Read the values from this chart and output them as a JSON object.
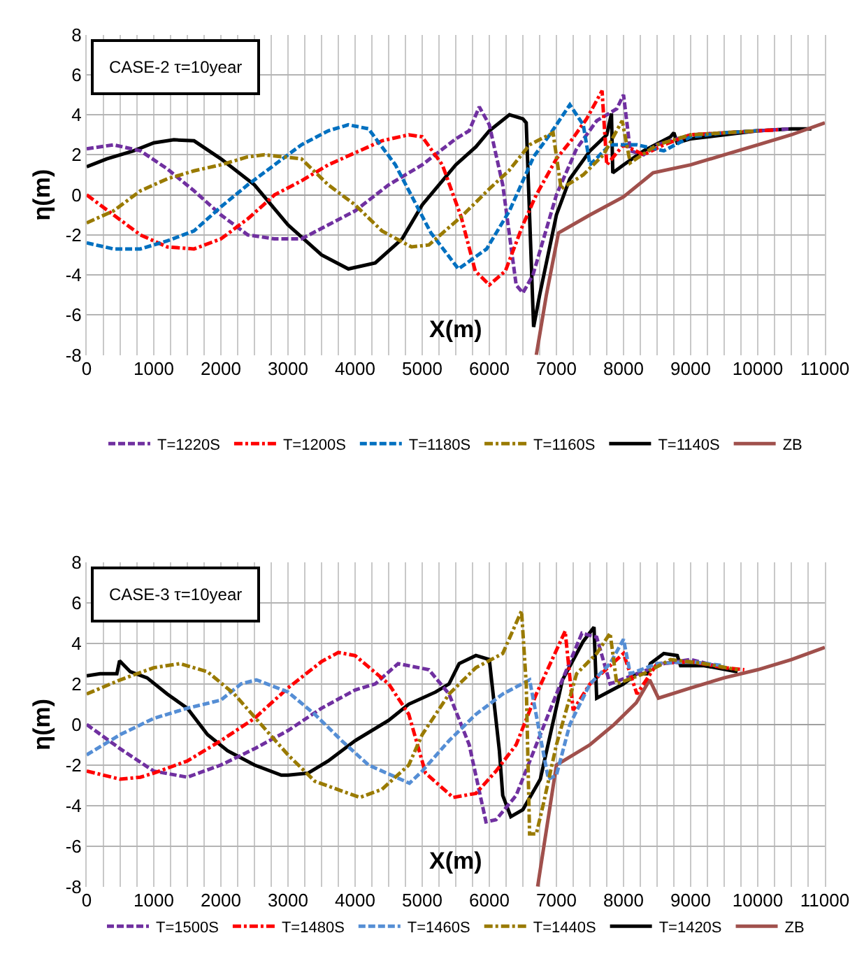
{
  "chart_data": [
    {
      "type": "line",
      "title": "CASE-2 τ=10year",
      "xlabel": "X(m)",
      "ylabel": "η(m)",
      "xlim": [
        0,
        11000
      ],
      "xticks": [
        0,
        1000,
        2000,
        3000,
        4000,
        5000,
        6000,
        7000,
        8000,
        9000,
        10000,
        11000
      ],
      "ylim": [
        -8,
        8
      ],
      "yticks": [
        -8,
        -6,
        -4,
        -2,
        0,
        2,
        4,
        6,
        8
      ],
      "grid": true,
      "legend": "bottom",
      "series": [
        {
          "name": "T=1220S",
          "color": "#7030a0",
          "line_style": "dashed",
          "x": [
            0,
            400,
            800,
            1200,
            1600,
            2000,
            2400,
            2800,
            3200,
            3600,
            4000,
            4500,
            5000,
            5500,
            5700,
            5850,
            6000,
            6200,
            6300,
            6400,
            6500,
            6650,
            7000,
            7300,
            7600,
            7900,
            8000,
            8100,
            8300,
            8500,
            9000,
            9500,
            10000,
            10500
          ],
          "values": [
            2.3,
            2.5,
            2.2,
            1.3,
            0.2,
            -1,
            -2,
            -2.2,
            -2.2,
            -1.5,
            -0.8,
            0.5,
            1.5,
            2.8,
            3.2,
            4.4,
            3.5,
            0.5,
            -2,
            -4.5,
            -4.9,
            -4,
            0,
            2.3,
            3.7,
            4.3,
            5.0,
            2.2,
            2,
            2.5,
            3,
            3.1,
            3.2,
            3.3
          ]
        },
        {
          "name": "T=1200S",
          "color": "#ff0000",
          "line_style": "dashdot",
          "x": [
            0,
            400,
            800,
            1200,
            1600,
            2000,
            2400,
            2800,
            3200,
            3600,
            4000,
            4400,
            4800,
            5000,
            5300,
            5580,
            5790,
            6000,
            6240,
            6500,
            6700,
            7000,
            7240,
            7450,
            7680,
            7750,
            8000,
            8300,
            8600,
            9000,
            9500,
            10300
          ],
          "values": [
            0,
            -1,
            -2,
            -2.6,
            -2.7,
            -2.2,
            -1.2,
            0,
            0.7,
            1.5,
            2.1,
            2.7,
            3.0,
            2.9,
            1.5,
            -1.1,
            -3.8,
            -4.5,
            -3.8,
            -1.5,
            0,
            1.8,
            2.8,
            3.8,
            5.2,
            1.5,
            2.5,
            2.0,
            2.5,
            3,
            3.1,
            3.25
          ]
        },
        {
          "name": "T=1180S",
          "color": "#0070c0",
          "line_style": "dashed",
          "x": [
            0,
            400,
            800,
            1200,
            1600,
            2000,
            2400,
            2800,
            3200,
            3600,
            3900,
            4200,
            4600,
            5130,
            5540,
            5960,
            6300,
            6660,
            6900,
            7200,
            7400,
            7500,
            7800,
            8200,
            8600,
            9000,
            9500,
            10000
          ],
          "values": [
            -2.4,
            -2.7,
            -2.7,
            -2.3,
            -1.8,
            -0.6,
            0.5,
            1.5,
            2.5,
            3.2,
            3.5,
            3.3,
            1.5,
            -1.9,
            -3.7,
            -2.7,
            -0.8,
            1.9,
            3,
            4.5,
            3.5,
            1.5,
            2.5,
            2.5,
            2.2,
            2.9,
            3.1,
            3.2
          ]
        },
        {
          "name": "T=1160S",
          "color": "#997a00",
          "line_style": "dashdot",
          "x": [
            0,
            400,
            800,
            1200,
            1600,
            2000,
            2400,
            2650,
            3200,
            3600,
            4000,
            4400,
            4840,
            5100,
            5580,
            6000,
            6290,
            6600,
            6950,
            7070,
            7400,
            7700,
            7980,
            8100,
            8500,
            9000,
            10000
          ],
          "values": [
            -1.4,
            -0.8,
            0.2,
            0.8,
            1.2,
            1.5,
            1.9,
            2.0,
            1.8,
            0.5,
            -0.5,
            -1.8,
            -2.6,
            -2.5,
            -1.1,
            0.3,
            1.2,
            2.5,
            3.1,
            0.3,
            1,
            2,
            3.7,
            1.6,
            2.5,
            3,
            3.2
          ]
        },
        {
          "name": "T=1140S",
          "color": "#000000",
          "line_style": "solid",
          "x": [
            0,
            300,
            700,
            1000,
            1300,
            1600,
            2000,
            2500,
            3000,
            3500,
            3900,
            4300,
            4700,
            5000,
            5500,
            5800,
            6000,
            6300,
            6500,
            6550,
            6660,
            6750,
            7000,
            7200,
            7500,
            7750,
            7820,
            7840,
            8000,
            8300,
            8700,
            8750,
            8800,
            9000,
            9500,
            10000,
            10500,
            10800
          ],
          "values": [
            1.4,
            1.8,
            2.2,
            2.6,
            2.75,
            2.7,
            1.8,
            0.5,
            -1.5,
            -3,
            -3.7,
            -3.4,
            -2.2,
            -0.5,
            1.5,
            2.4,
            3.2,
            4.0,
            3.8,
            3.6,
            -6.6,
            -5,
            -1,
            0.8,
            2.2,
            3.0,
            4.06,
            1.1,
            1.5,
            2.2,
            2.9,
            3.1,
            2.6,
            2.8,
            3.0,
            3.2,
            3.3,
            3.3
          ]
        },
        {
          "name": "ZB",
          "color": "#a0504c",
          "line_style": "solid",
          "x": [
            6700,
            6850,
            7030,
            7500,
            8000,
            8440,
            9000,
            9500,
            10000,
            10500,
            11000
          ],
          "values": [
            -8,
            -5,
            -1.9,
            -1,
            -0.1,
            1.1,
            1.5,
            2,
            2.5,
            3,
            3.6
          ]
        }
      ]
    },
    {
      "type": "line",
      "title": "CASE-3 τ=10year",
      "xlabel": "X(m)",
      "ylabel": "η(m)",
      "xlim": [
        0,
        11000
      ],
      "xticks": [
        0,
        1000,
        2000,
        3000,
        4000,
        5000,
        6000,
        7000,
        8000,
        9000,
        10000,
        11000
      ],
      "ylim": [
        -8,
        8
      ],
      "yticks": [
        -8,
        -6,
        -4,
        -2,
        0,
        2,
        4,
        6,
        8
      ],
      "grid": true,
      "legend": "bottom",
      "series": [
        {
          "name": "T=1500S",
          "color": "#7030a0",
          "line_style": "dashed",
          "x": [
            0,
            500,
            1000,
            1500,
            2000,
            2500,
            3000,
            3500,
            4000,
            4300,
            4640,
            5100,
            5400,
            5700,
            5950,
            6100,
            6400,
            6700,
            7000,
            7380,
            7600,
            7800,
            8200,
            8600,
            9000,
            9500
          ],
          "values": [
            0,
            -1.2,
            -2.3,
            -2.6,
            -2,
            -1.2,
            -0.3,
            0.8,
            1.7,
            2.0,
            3.0,
            2.7,
            1.5,
            -1,
            -4.8,
            -4.7,
            -3.5,
            -1,
            1.5,
            4.5,
            4.3,
            2,
            2.5,
            3,
            3.2,
            2.8
          ]
        },
        {
          "name": "T=1480S",
          "color": "#ff0000",
          "line_style": "dashdot",
          "x": [
            0,
            500,
            800,
            1000,
            1500,
            2000,
            2500,
            3000,
            3500,
            3750,
            4000,
            4500,
            4800,
            5050,
            5460,
            5800,
            6100,
            6400,
            6700,
            7130,
            7250,
            7500,
            8000,
            8200,
            8500,
            9000,
            9500,
            9800
          ],
          "values": [
            -2.3,
            -2.7,
            -2.6,
            -2.4,
            -1.8,
            -0.8,
            0.3,
            1.8,
            3.1,
            3.55,
            3.4,
            2,
            0.5,
            -2.4,
            -3.6,
            -3.4,
            -2.3,
            -1,
            1.5,
            4.6,
            0.7,
            2,
            3.5,
            1.5,
            3,
            3.1,
            2.8,
            2.7
          ]
        },
        {
          "name": "T=1460S",
          "color": "#558ed5",
          "line_style": "dashed",
          "x": [
            0,
            500,
            1000,
            1500,
            2000,
            2300,
            2530,
            3000,
            3400,
            3800,
            4200,
            4810,
            5000,
            5400,
            5800,
            6200,
            6600,
            6880,
            7000,
            7200,
            7500,
            7800,
            8000,
            8100,
            8500,
            9000,
            9500
          ],
          "values": [
            -1.5,
            -0.5,
            0.3,
            0.8,
            1.2,
            2.0,
            2.2,
            1.6,
            0.5,
            -0.8,
            -2,
            -2.9,
            -2.3,
            -0.8,
            0.5,
            1.5,
            2.2,
            -2.7,
            -2.5,
            0,
            2,
            3,
            4.2,
            2.5,
            3,
            3.1,
            2.9
          ]
        },
        {
          "name": "T=1440S",
          "color": "#997a00",
          "line_style": "dashdot",
          "x": [
            0,
            500,
            1000,
            1390,
            1800,
            2200,
            2600,
            3000,
            3400,
            4070,
            4400,
            4800,
            5000,
            5400,
            5800,
            6200,
            6480,
            6550,
            6600,
            6700,
            6800,
            7000,
            7300,
            7600,
            7800,
            7900,
            8300,
            8700,
            9200,
            9700
          ],
          "values": [
            1.5,
            2.2,
            2.8,
            3.0,
            2.6,
            1.5,
            0,
            -1.5,
            -2.8,
            -3.6,
            -3.2,
            -2,
            -0.5,
            1.5,
            2.8,
            3.5,
            5.6,
            2,
            -5.4,
            -5.4,
            -4,
            -1,
            2.5,
            3.5,
            4.5,
            2,
            2.5,
            3.2,
            3.0,
            2.7
          ]
        },
        {
          "name": "T=1420S",
          "color": "#000000",
          "line_style": "solid",
          "x": [
            0,
            200,
            450,
            490,
            650,
            900,
            1200,
            1500,
            1800,
            2100,
            2500,
            2900,
            3000,
            3300,
            3600,
            4000,
            4500,
            4800,
            5200,
            5400,
            5550,
            5800,
            6000,
            6150,
            6200,
            6320,
            6500,
            6760,
            7090,
            7400,
            7560,
            7600,
            8000,
            8200,
            8350,
            8400,
            8600,
            8800,
            8850,
            9200,
            9700
          ],
          "values": [
            2.4,
            2.5,
            2.5,
            3.14,
            2.6,
            2.3,
            1.5,
            0.8,
            -0.5,
            -1.3,
            -2,
            -2.5,
            -2.5,
            -2.4,
            -1.8,
            -0.8,
            0.2,
            1,
            1.6,
            2,
            3,
            3.4,
            3.2,
            -1.3,
            -3.5,
            -4.55,
            -4.2,
            -2.7,
            2.2,
            4.1,
            4.8,
            1.3,
            2,
            2.5,
            2.5,
            3,
            3.5,
            3.4,
            2.9,
            2.9,
            2.6
          ]
        },
        {
          "name": "ZB",
          "color": "#a0504c",
          "line_style": "solid",
          "x": [
            6720,
            7000,
            7500,
            7860,
            8190,
            8390,
            8520,
            9000,
            9500,
            10000,
            10500,
            11000
          ],
          "values": [
            -8,
            -2,
            -1,
            0,
            1.07,
            2.2,
            1.3,
            1.8,
            2.3,
            2.7,
            3.2,
            3.8
          ]
        }
      ]
    }
  ]
}
